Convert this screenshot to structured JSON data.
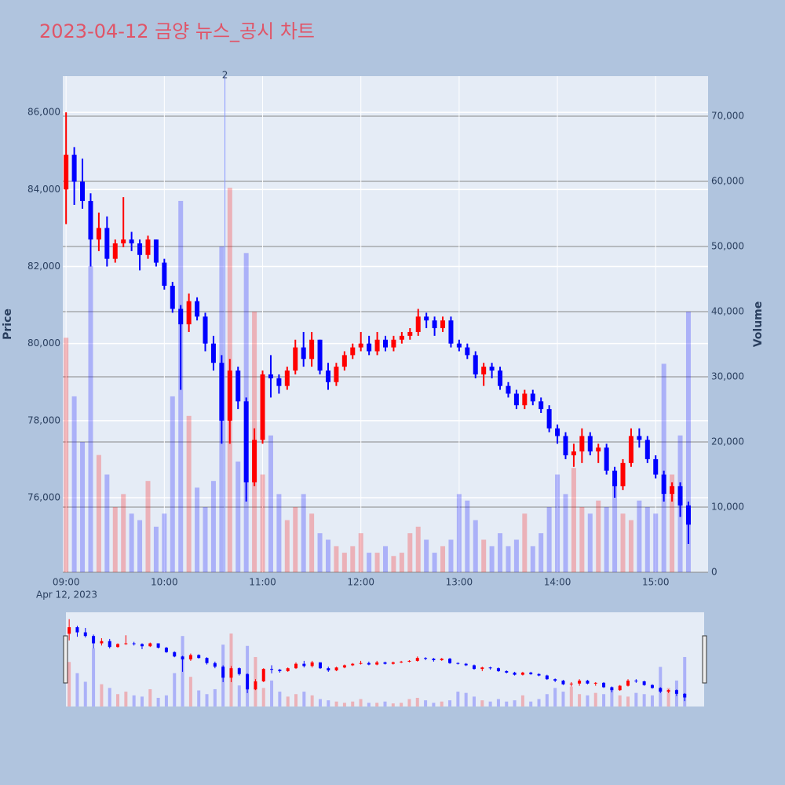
{
  "chart_data": {
    "type": "candlestick",
    "title": "2023-04-12 금양 뉴스_공시 차트",
    "x_label_date": "Apr 12, 2023",
    "y_label": "Price",
    "y2_label": "Volume",
    "up_color": "#ff0000",
    "down_color": "#0000ff",
    "grid": true,
    "range_slider": true,
    "x": [
      "09:00",
      "09:05",
      "09:10",
      "09:15",
      "09:20",
      "09:25",
      "09:30",
      "09:35",
      "09:40",
      "09:45",
      "09:50",
      "09:55",
      "10:00",
      "10:05",
      "10:10",
      "10:15",
      "10:20",
      "10:25",
      "10:30",
      "10:35",
      "10:40",
      "10:45",
      "10:50",
      "10:55",
      "11:00",
      "11:05",
      "11:10",
      "11:15",
      "11:20",
      "11:25",
      "11:30",
      "11:35",
      "11:40",
      "11:45",
      "11:50",
      "11:55",
      "12:00",
      "12:05",
      "12:10",
      "12:15",
      "12:20",
      "12:25",
      "12:30",
      "12:35",
      "12:40",
      "12:45",
      "12:50",
      "12:55",
      "13:00",
      "13:05",
      "13:10",
      "13:15",
      "13:20",
      "13:25",
      "13:30",
      "13:35",
      "13:40",
      "13:45",
      "13:50",
      "13:55",
      "14:00",
      "14:05",
      "14:10",
      "14:15",
      "14:20",
      "14:25",
      "14:30",
      "14:35",
      "14:40",
      "14:45",
      "14:50",
      "14:55",
      "15:00",
      "15:05",
      "15:10",
      "15:15",
      "15:20"
    ],
    "open": [
      84000,
      84900,
      84200,
      83700,
      82700,
      83000,
      82200,
      82600,
      82700,
      82600,
      82300,
      82700,
      82100,
      81500,
      80900,
      80500,
      81100,
      80700,
      80000,
      79500,
      78000,
      79300,
      78500,
      76400,
      77500,
      79200,
      79100,
      78900,
      79300,
      79900,
      79600,
      80100,
      79300,
      79000,
      79400,
      79700,
      79900,
      80000,
      79800,
      80100,
      79900,
      80100,
      80200,
      80300,
      80700,
      80600,
      80400,
      80600,
      80000,
      79900,
      79700,
      79200,
      79400,
      79300,
      78900,
      78700,
      78400,
      78700,
      78500,
      78300,
      77800,
      77600,
      77100,
      77200,
      77600,
      77200,
      77300,
      76700,
      76300,
      76900,
      77600,
      77500,
      77000,
      76600,
      76100,
      76300,
      75800
    ],
    "high": [
      86000,
      85100,
      84800,
      83900,
      83400,
      83300,
      82700,
      83800,
      82900,
      82700,
      82800,
      82700,
      82200,
      81600,
      81000,
      81300,
      81200,
      80800,
      80200,
      79700,
      79600,
      79400,
      78600,
      77800,
      79300,
      79700,
      79200,
      79400,
      80100,
      80300,
      80300,
      80100,
      79500,
      79500,
      79800,
      80000,
      80300,
      80200,
      80300,
      80200,
      80200,
      80300,
      80400,
      80900,
      80800,
      80700,
      80700,
      80700,
      80100,
      80000,
      79800,
      79500,
      79500,
      79400,
      79000,
      78800,
      78800,
      78800,
      78600,
      78400,
      77900,
      77700,
      77400,
      77800,
      77700,
      77400,
      77400,
      76800,
      77000,
      77800,
      77800,
      77600,
      77100,
      76700,
      76400,
      76400,
      75900
    ],
    "low": [
      83100,
      83600,
      83500,
      82000,
      82400,
      82000,
      82100,
      82500,
      82400,
      81900,
      82200,
      82000,
      81400,
      80800,
      78800,
      80300,
      80600,
      79800,
      79300,
      77400,
      77400,
      78300,
      75900,
      76300,
      77400,
      78600,
      78700,
      78800,
      79200,
      79400,
      79400,
      79200,
      78800,
      78900,
      79300,
      79600,
      79800,
      79700,
      79700,
      79800,
      79800,
      80000,
      80100,
      80200,
      80400,
      80200,
      80300,
      79900,
      79800,
      79600,
      79100,
      78900,
      79100,
      78800,
      78600,
      78300,
      78300,
      78400,
      78200,
      77700,
      77400,
      77000,
      76800,
      76900,
      77100,
      76900,
      76600,
      76000,
      76200,
      76800,
      77300,
      76900,
      76500,
      75900,
      75900,
      75500,
      74800
    ],
    "close": [
      84900,
      84200,
      83700,
      82700,
      83000,
      82200,
      82600,
      82700,
      82600,
      82300,
      82700,
      82100,
      81500,
      80900,
      80500,
      81100,
      80700,
      80000,
      79500,
      78000,
      79300,
      78500,
      76400,
      77500,
      79200,
      79100,
      78900,
      79300,
      79900,
      79600,
      80100,
      79300,
      79000,
      79400,
      79700,
      79900,
      80000,
      79800,
      80100,
      79900,
      80100,
      80200,
      80300,
      80700,
      80600,
      80400,
      80600,
      80000,
      79900,
      79700,
      79200,
      79400,
      79300,
      78900,
      78700,
      78400,
      78700,
      78500,
      78300,
      77800,
      77600,
      77100,
      77200,
      77600,
      77200,
      77300,
      76700,
      76300,
      76900,
      77600,
      77500,
      77000,
      76600,
      76100,
      76300,
      75800,
      75300
    ],
    "volume": [
      36000,
      27000,
      20000,
      47000,
      18000,
      15000,
      10000,
      12000,
      9000,
      8000,
      14000,
      7000,
      9000,
      27000,
      57000,
      24000,
      13000,
      10000,
      14000,
      50000,
      59000,
      17000,
      49000,
      40000,
      15000,
      21000,
      12000,
      8000,
      10000,
      12000,
      9000,
      6000,
      5000,
      4000,
      3000,
      4000,
      6000,
      3000,
      3000,
      4000,
      2500,
      3000,
      6000,
      7000,
      5000,
      3000,
      4000,
      5000,
      12000,
      11000,
      8000,
      5000,
      4000,
      6000,
      4000,
      5000,
      9000,
      4000,
      6000,
      10000,
      15000,
      12000,
      16000,
      10000,
      9000,
      11000,
      10000,
      14000,
      9000,
      8000,
      11000,
      10000,
      9000,
      32000,
      15000,
      21000,
      40000
    ],
    "xlim": [
      "08:58",
      "15:32"
    ],
    "xticks": [
      "09:00",
      "10:00",
      "11:00",
      "12:00",
      "13:00",
      "14:00",
      "15:00"
    ],
    "ylim": [
      74065,
      86940
    ],
    "yticks": [
      {
        "value": 76000,
        "label": "76,000"
      },
      {
        "value": 78000,
        "label": "78,000"
      },
      {
        "value": 80000,
        "label": "80,000"
      },
      {
        "value": 82000,
        "label": "82,000"
      },
      {
        "value": 84000,
        "label": "84,000"
      },
      {
        "value": 86000,
        "label": "86,000"
      }
    ],
    "y2lim": [
      0,
      76150
    ],
    "y2ticks": [
      0,
      {
        "value": 10000,
        "label": "10,000"
      },
      {
        "value": 20000,
        "label": "20,000"
      },
      {
        "value": 30000,
        "label": "30,000"
      },
      {
        "value": 40000,
        "label": "40,000"
      },
      {
        "value": 50000,
        "label": "50,000"
      },
      {
        "value": 60000,
        "label": "60,000"
      },
      {
        "value": 70000,
        "label": "70,000"
      }
    ],
    "annotations": [
      {
        "x": "10:37",
        "text": "2"
      }
    ]
  }
}
